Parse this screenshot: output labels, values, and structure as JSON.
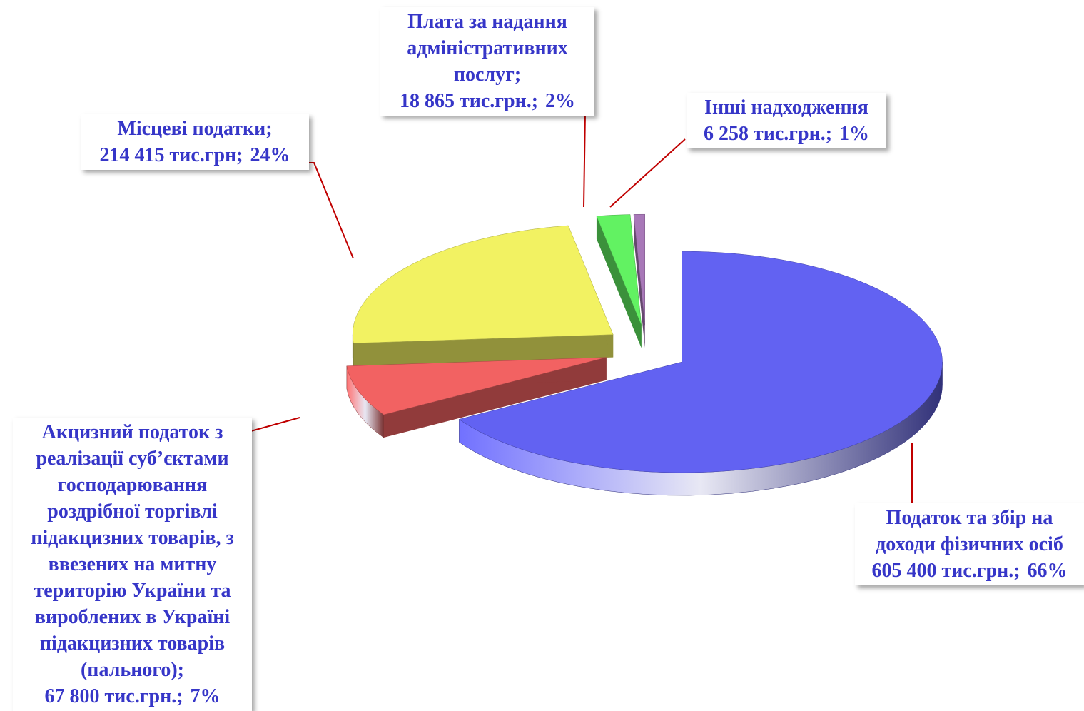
{
  "chart_data": {
    "type": "pie3d",
    "categories": [
      "Податок  та збір на доходи фізичних осіб",
      "Акцизний податок з реалізації суб’єктами господарювання роздрібної торгівлі підакцизних товарів, з ввезених на митну територію України та вироблених в Україні підакцизних товарів (пального);",
      "Місцеві податки;",
      "Плата  за надання адміністративних послуг;",
      "Інші надходження"
    ],
    "values": [
      605400,
      67800,
      214415,
      18865,
      6258
    ],
    "value_labels": [
      "605 400 тис.грн.;",
      "67 800 тис.грн.;",
      "214 415 тис.грн;",
      "18 865 тис.грн.;",
      "6 258 тис.грн.;"
    ],
    "percents": [
      66,
      7,
      24,
      2,
      1
    ],
    "percent_labels": [
      "66%",
      "7%",
      "24%",
      "2%",
      "1%"
    ],
    "colors": [
      "#6262f2",
      "#f26262",
      "#f2f262",
      "#62f262",
      "#a878b8"
    ]
  }
}
